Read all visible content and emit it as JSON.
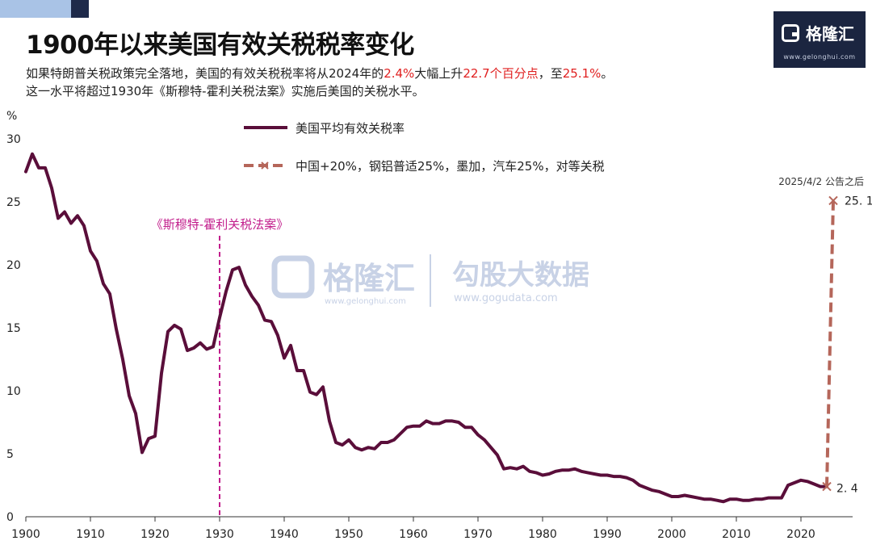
{
  "header": {
    "title": "1900年以来美国有效关税税率变化",
    "subtitle_line1": {
      "p1": "如果特朗普关税政策完全落地，美国的有效关税税率将从2024年的",
      "h1": "2.4%",
      "p2": "大幅上升",
      "h2": "22.7个百分点",
      "p3": "，至",
      "h3": "25.1%",
      "p4": "。"
    },
    "subtitle_line2": "这一水平将超过1930年《斯穆特-霍利关税法案》实施后美国的关税水平。"
  },
  "logo": {
    "name": "格隆汇",
    "url": "www.gelonghui.com"
  },
  "watermark": {
    "brand1": "格隆汇",
    "url1": "www.gelonghui.com",
    "brand2": "勾股大数据",
    "url2": "www.gogudata.com"
  },
  "colors": {
    "series_main": "#5a0e3a",
    "series_dash": "#b5665a",
    "event_line": "#c21e8c",
    "highlight": "#e02020",
    "logo_bg": "#1b2540"
  },
  "chart_data": {
    "type": "line",
    "ylabel": "%",
    "xlim": [
      1900,
      2028
    ],
    "ylim": [
      0,
      30
    ],
    "yticks": [
      0,
      5,
      10,
      15,
      20,
      25,
      30
    ],
    "xticks": [
      1900,
      1910,
      1920,
      1930,
      1940,
      1950,
      1960,
      1970,
      1980,
      1990,
      2000,
      2010,
      2020
    ],
    "grid": false,
    "legend_position": "top",
    "series": [
      {
        "name": "美国平均有效关税率",
        "style": "solid",
        "x": [
          1900,
          1901,
          1902,
          1903,
          1904,
          1905,
          1906,
          1907,
          1908,
          1909,
          1910,
          1911,
          1912,
          1913,
          1914,
          1915,
          1916,
          1917,
          1918,
          1919,
          1920,
          1921,
          1922,
          1923,
          1924,
          1925,
          1926,
          1927,
          1928,
          1929,
          1930,
          1931,
          1932,
          1933,
          1934,
          1935,
          1936,
          1937,
          1938,
          1939,
          1940,
          1941,
          1942,
          1943,
          1944,
          1945,
          1946,
          1947,
          1948,
          1949,
          1950,
          1951,
          1952,
          1953,
          1954,
          1955,
          1956,
          1957,
          1958,
          1959,
          1960,
          1961,
          1962,
          1963,
          1964,
          1965,
          1966,
          1967,
          1968,
          1969,
          1970,
          1971,
          1972,
          1973,
          1974,
          1975,
          1976,
          1977,
          1978,
          1979,
          1980,
          1981,
          1982,
          1983,
          1984,
          1985,
          1986,
          1987,
          1988,
          1989,
          1990,
          1991,
          1992,
          1993,
          1994,
          1995,
          1996,
          1997,
          1998,
          1999,
          2000,
          2001,
          2002,
          2003,
          2004,
          2005,
          2006,
          2007,
          2008,
          2009,
          2010,
          2011,
          2012,
          2013,
          2014,
          2015,
          2016,
          2017,
          2018,
          2019,
          2020,
          2021,
          2022,
          2023,
          2024
        ],
        "values": [
          27.4,
          28.8,
          27.7,
          27.7,
          26.1,
          23.7,
          24.2,
          23.3,
          23.9,
          23.1,
          21.1,
          20.3,
          18.5,
          17.7,
          14.9,
          12.5,
          9.6,
          8.2,
          5.1,
          6.2,
          6.4,
          11.4,
          14.7,
          15.2,
          14.9,
          13.2,
          13.4,
          13.8,
          13.3,
          13.5,
          15.8,
          17.9,
          19.6,
          19.8,
          18.4,
          17.5,
          16.8,
          15.6,
          15.5,
          14.4,
          12.6,
          13.6,
          11.6,
          11.6,
          9.9,
          9.7,
          10.3,
          7.6,
          5.9,
          5.7,
          6.1,
          5.5,
          5.3,
          5.5,
          5.4,
          5.9,
          5.9,
          6.1,
          6.6,
          7.1,
          7.2,
          7.2,
          7.6,
          7.4,
          7.4,
          7.6,
          7.6,
          7.5,
          7.1,
          7.1,
          6.5,
          6.1,
          5.5,
          4.9,
          3.8,
          3.9,
          3.8,
          4.0,
          3.6,
          3.5,
          3.3,
          3.4,
          3.6,
          3.7,
          3.7,
          3.8,
          3.6,
          3.5,
          3.4,
          3.3,
          3.3,
          3.2,
          3.2,
          3.1,
          2.9,
          2.5,
          2.3,
          2.1,
          2.0,
          1.8,
          1.6,
          1.6,
          1.7,
          1.6,
          1.5,
          1.4,
          1.4,
          1.3,
          1.2,
          1.4,
          1.4,
          1.3,
          1.3,
          1.4,
          1.4,
          1.5,
          1.5,
          1.5,
          2.5,
          2.7,
          2.9,
          2.8,
          2.6,
          2.4,
          2.4
        ]
      },
      {
        "name": "中国+20%，钢铝普适25%，墨加，汽车25%，对等关税",
        "style": "dashed",
        "x": [
          2024,
          2025
        ],
        "values": [
          2.4,
          25.1
        ]
      }
    ],
    "annotations": {
      "event_label": "《斯穆特-霍利关税法案》",
      "event_year": 1930,
      "point_top_label": "2025/4/2 公告之后",
      "point_top_value": "25. 1",
      "point_bottom_value": "2. 4"
    }
  }
}
